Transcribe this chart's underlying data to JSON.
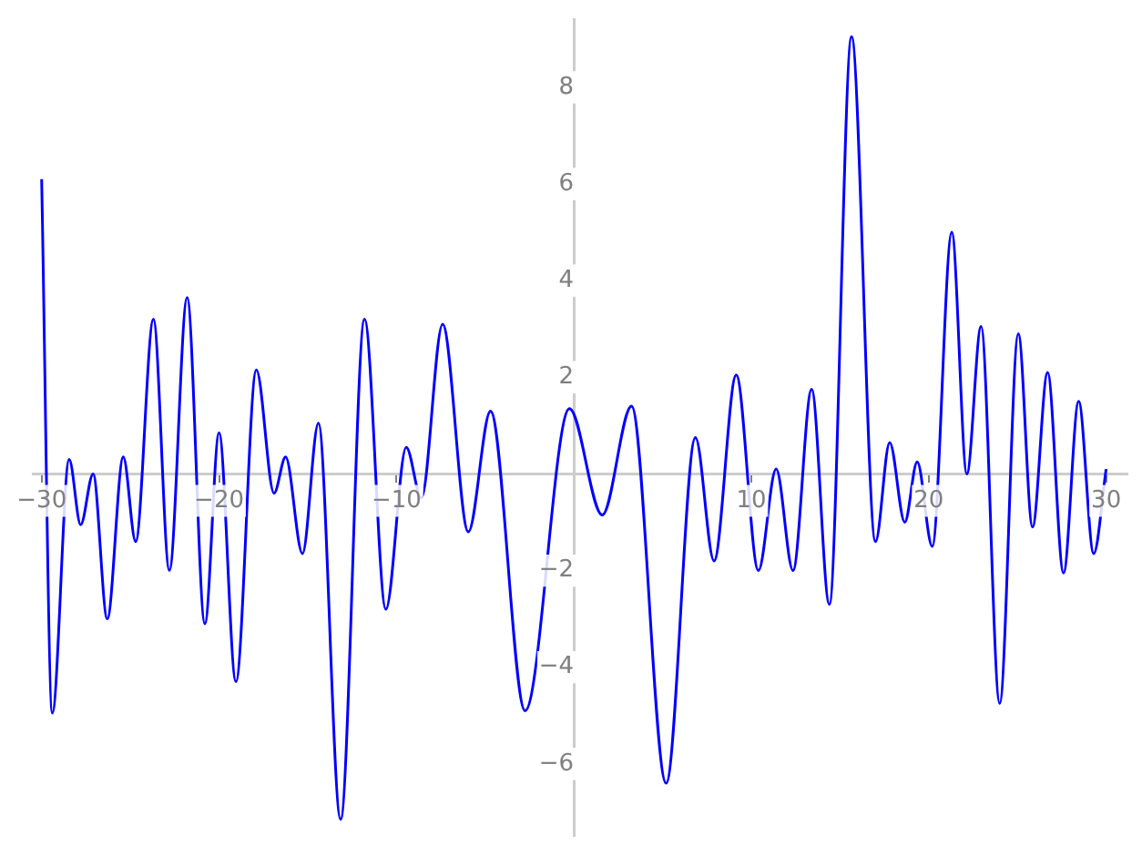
{
  "chart_data": {
    "type": "line",
    "x": [
      -30,
      -29.4,
      -28.45,
      -27.8,
      -27.1,
      -26.3,
      -25.4,
      -24.7,
      -23.7,
      -22.8,
      -21.8,
      -20.8,
      -20.0,
      -19.05,
      -17.9,
      -16.9,
      -16.25,
      -15.3,
      -14.4,
      -13.15,
      -11.8,
      -10.6,
      -9.45,
      -8.6,
      -7.4,
      -5.95,
      -4.7,
      -2.75,
      -0.25,
      1.6,
      3.25,
      5.2,
      6.85,
      7.9,
      9.15,
      10.4,
      11.4,
      12.35,
      13.4,
      14.4,
      15.65,
      17.0,
      17.8,
      18.65,
      19.35,
      20.2,
      21.3,
      22.15,
      22.95,
      24.0,
      25.05,
      25.85,
      26.7,
      27.6,
      28.45,
      29.3,
      30
    ],
    "series": [
      {
        "color": "#0000ff",
        "values": [
          6.1,
          -4.95,
          0.3,
          -1.05,
          0.0,
          -3.0,
          0.35,
          -1.4,
          3.2,
          -2.0,
          3.65,
          -3.1,
          0.85,
          -4.3,
          2.15,
          -0.4,
          0.35,
          -1.65,
          1.05,
          -7.15,
          3.2,
          -2.8,
          0.55,
          -0.5,
          3.1,
          -1.2,
          1.3,
          -4.9,
          1.35,
          -0.85,
          1.4,
          -6.4,
          0.75,
          -1.8,
          2.05,
          -2.0,
          0.1,
          -2.0,
          1.75,
          -2.7,
          9.05,
          -1.4,
          0.65,
          -1.0,
          0.25,
          -1.5,
          5.0,
          0.0,
          3.05,
          -4.75,
          2.9,
          -1.1,
          2.1,
          -2.05,
          1.5,
          -1.65,
          0.1
        ]
      }
    ],
    "xlim": [
      -30.5,
      31.2
    ],
    "ylim": [
      -7.5,
      9.4
    ],
    "xticks": [
      -30,
      -20,
      -10,
      10,
      20,
      30
    ],
    "yticks": [
      -6,
      -4,
      -2,
      2,
      4,
      6,
      8
    ],
    "grid": false,
    "legend": false,
    "marker": "none",
    "line_style": "solid"
  }
}
